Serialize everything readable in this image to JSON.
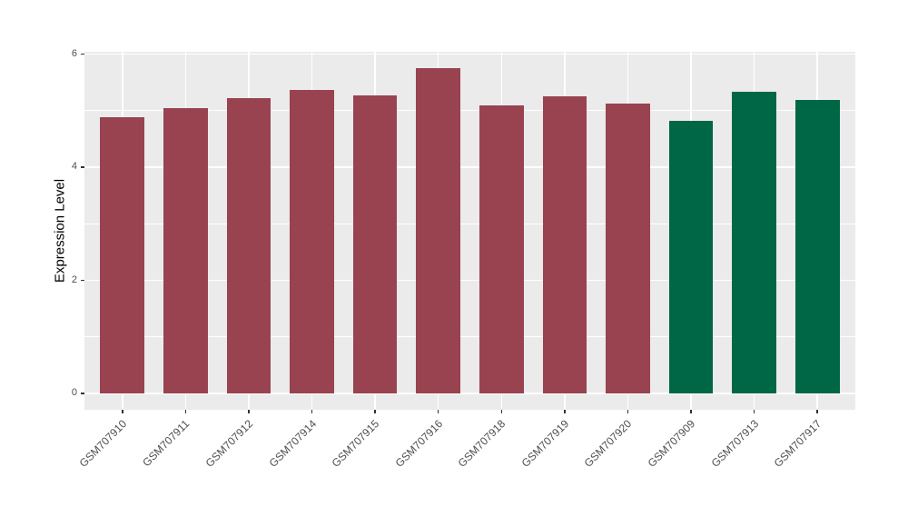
{
  "chart_data": {
    "type": "bar",
    "title": "",
    "xlabel": "",
    "ylabel": "Expression Level",
    "categories": [
      "GSM707910",
      "GSM707911",
      "GSM707912",
      "GSM707914",
      "GSM707915",
      "GSM707916",
      "GSM707918",
      "GSM707919",
      "GSM707920",
      "GSM707909",
      "GSM707913",
      "GSM707917"
    ],
    "values": [
      4.88,
      5.05,
      5.22,
      5.36,
      5.27,
      5.75,
      5.1,
      5.26,
      5.13,
      4.82,
      5.33,
      5.19
    ],
    "bar_colors": [
      "#994350",
      "#994350",
      "#994350",
      "#994350",
      "#994350",
      "#994350",
      "#994350",
      "#994350",
      "#994350",
      "#006746",
      "#006746",
      "#006746"
    ],
    "group_colors": {
      "group1": "#994350",
      "group2": "#006746"
    },
    "y_axis": {
      "tick_labels": [
        "0",
        "2",
        "4",
        "6"
      ],
      "major_ticks": [
        0,
        2,
        4,
        6
      ],
      "minor_ticks": [
        1,
        3,
        5
      ]
    },
    "ylim": [
      -0.29,
      6.04
    ],
    "bar_width_fraction": 0.7,
    "grid": "on",
    "legend": "none",
    "colors": {
      "panel_bg": "#EBEBEB",
      "grid": "#FFFFFF",
      "tick_mark": "#333333",
      "tick_label": "#4D4D4D",
      "axis_title": "#000000",
      "figure_bg": "#FFFFFF"
    }
  }
}
